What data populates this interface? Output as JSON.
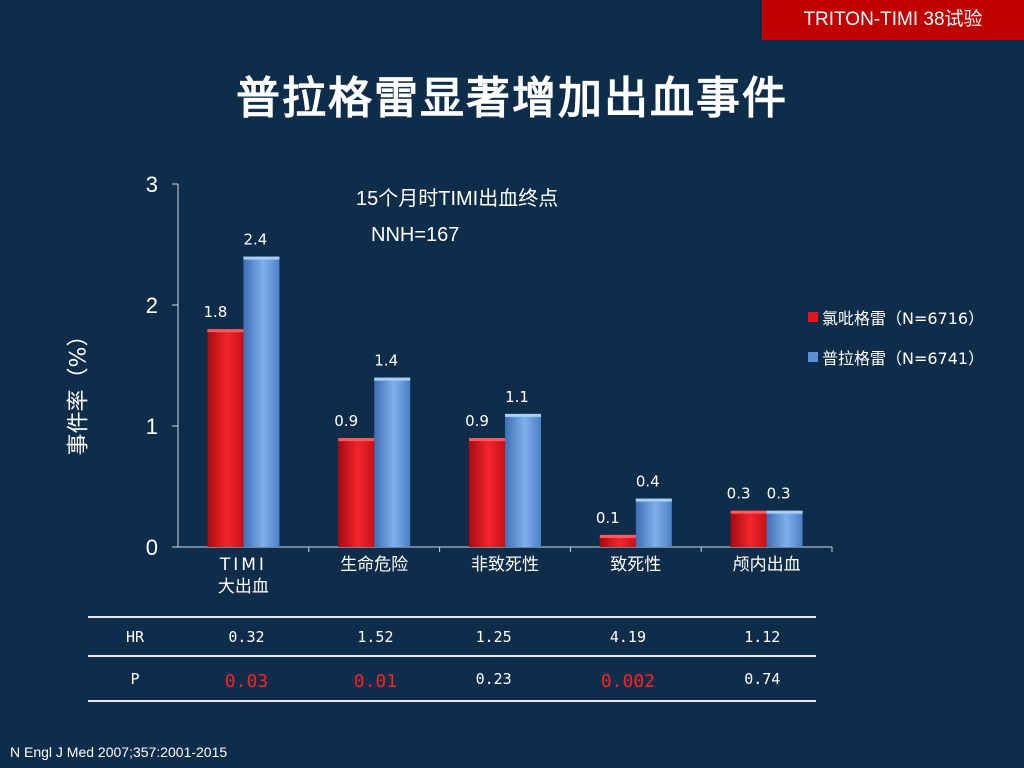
{
  "header": {
    "badge": "TRITON-TIMI 38试验",
    "title": "普拉格雷显著增加出血事件"
  },
  "annotations": {
    "subtitle": "15个月时TIMI出血终点",
    "nnh": "NNH=167"
  },
  "colors": {
    "background": "#0e2d4b",
    "badge": "#c00000",
    "clopidogrel": "#e8141b",
    "prasugrel": "#5b8fd8",
    "significant": "#ff2020"
  },
  "chart_data": {
    "type": "bar",
    "ylabel": "事件率（%）",
    "ylim": [
      0,
      3
    ],
    "yticks": [
      "0",
      "1",
      "2",
      "3"
    ],
    "categories": [
      "TIMI\n大出血",
      "生命危险",
      "非致死性",
      "致死性",
      "颅内出血"
    ],
    "series": [
      {
        "name": "氯吡格雷（N=6716）",
        "values": [
          1.8,
          0.9,
          0.9,
          0.1,
          0.3
        ],
        "labels": [
          "1.8",
          "0.9",
          "0.9",
          "0.1",
          "0.3"
        ]
      },
      {
        "name": "普拉格雷（N=6741）",
        "values": [
          2.4,
          1.4,
          1.1,
          0.4,
          0.3
        ],
        "labels": [
          "2.4",
          "1.4",
          "1.1",
          "0.4",
          "0.3"
        ]
      }
    ],
    "legend_position": "right"
  },
  "stats_table": {
    "rows": [
      {
        "label": "HR",
        "cells": [
          {
            "text": "0.32",
            "significant": false
          },
          {
            "text": "1.52",
            "significant": false
          },
          {
            "text": "1.25",
            "significant": false
          },
          {
            "text": "4.19",
            "significant": false
          },
          {
            "text": "1.12",
            "significant": false
          }
        ]
      },
      {
        "label": "P",
        "cells": [
          {
            "text": "0.03",
            "significant": true
          },
          {
            "text": "0.01",
            "significant": true
          },
          {
            "text": "0.23",
            "significant": false
          },
          {
            "text": "0.002",
            "significant": true
          },
          {
            "text": "0.74",
            "significant": false
          }
        ]
      }
    ]
  },
  "footer": {
    "source": "N Engl J Med 2007;357:2001-2015"
  }
}
